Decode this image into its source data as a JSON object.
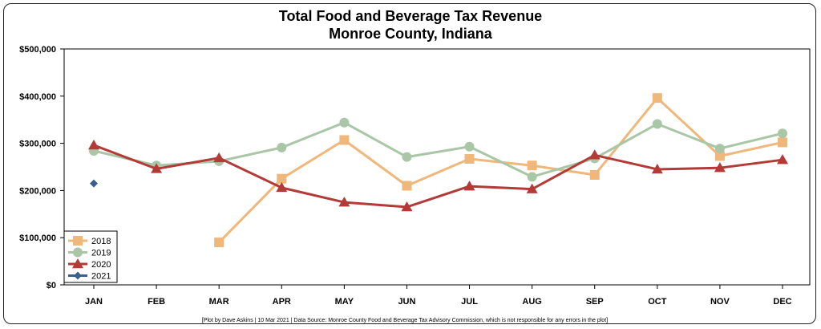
{
  "chart_data": {
    "type": "line",
    "title": "Total Food and Beverage Tax Revenue",
    "subtitle": "Monroe County, Indiana",
    "xlabel": "",
    "ylabel": "",
    "categories": [
      "JAN",
      "FEB",
      "MAR",
      "APR",
      "MAY",
      "JUN",
      "JUL",
      "AUG",
      "SEP",
      "OCT",
      "NOV",
      "DEC"
    ],
    "y_ticks": [
      "$0",
      "$100,000",
      "$200,000",
      "$300,000",
      "$400,000",
      "$500,000"
    ],
    "y_tick_values": [
      0,
      100000,
      200000,
      300000,
      400000,
      500000
    ],
    "ylim": [
      0,
      500000
    ],
    "grid": false,
    "legend_position": "bottom-left",
    "series": [
      {
        "name": "2018",
        "color": "#F0B77A",
        "marker": "square",
        "values": [
          null,
          null,
          90000,
          225000,
          307000,
          210000,
          267000,
          253000,
          233000,
          396000,
          273000,
          302000
        ]
      },
      {
        "name": "2019",
        "color": "#A9C6A7",
        "marker": "circle",
        "values": [
          284000,
          253000,
          262000,
          291000,
          344000,
          271000,
          293000,
          229000,
          268000,
          341000,
          289000,
          321000
        ]
      },
      {
        "name": "2020",
        "color": "#B33A36",
        "marker": "triangle",
        "values": [
          296000,
          246000,
          269000,
          206000,
          175000,
          165000,
          209000,
          203000,
          275000,
          245000,
          248000,
          265000
        ]
      },
      {
        "name": "2021",
        "color": "#3A5F8C",
        "marker": "diamond",
        "values": [
          215000,
          null,
          null,
          null,
          null,
          null,
          null,
          null,
          null,
          null,
          null,
          null
        ]
      }
    ],
    "footnote": "[Plot by Dave Askins | 10 Mar 2021 | Data Source: Monroe County Food and Beverage Tax Advisory Commission, which is not responsible for any errors in the plot]"
  }
}
